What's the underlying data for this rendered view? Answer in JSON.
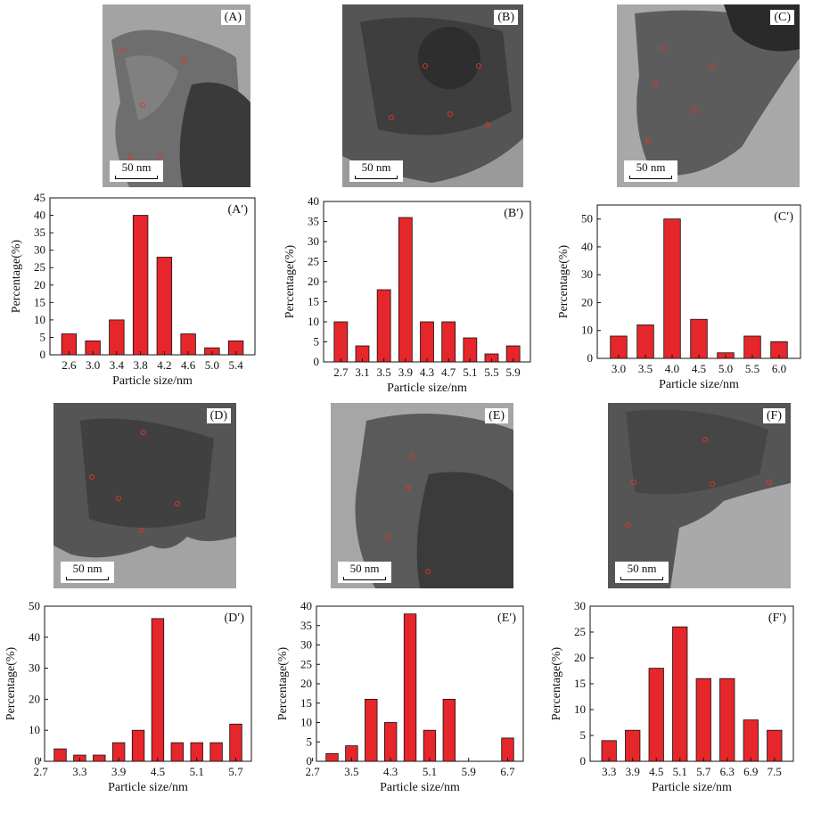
{
  "tem_panels": [
    {
      "label": "(A)",
      "scale": "50 nm"
    },
    {
      "label": "(B)",
      "scale": "50 nm"
    },
    {
      "label": "(C)",
      "scale": "50 nm"
    },
    {
      "label": "(D)",
      "scale": "50 nm"
    },
    {
      "label": "(E)",
      "scale": "50 nm"
    },
    {
      "label": "(F)",
      "scale": "50 nm"
    }
  ],
  "colors": {
    "bar": "#e5262b",
    "bar_edge": "#111111"
  },
  "chart_data": [
    {
      "type": "bar",
      "panel": "(A′)",
      "xlabel": "Particle size/nm",
      "ylabel": "Percentage(%)",
      "categories": [
        "2.6",
        "3.0",
        "3.4",
        "3.8",
        "4.2",
        "4.6",
        "5.0",
        "5.4"
      ],
      "values": [
        6,
        4,
        10,
        40,
        28,
        6,
        2,
        4
      ],
      "ylim": [
        0,
        45
      ],
      "yticks": [
        0,
        5,
        10,
        15,
        20,
        25,
        30,
        35,
        40,
        45
      ]
    },
    {
      "type": "bar",
      "panel": "(B′)",
      "xlabel": "Particle size/nm",
      "ylabel": "Percentage(%)",
      "categories": [
        "2.7",
        "3.1",
        "3.5",
        "3.9",
        "4.3",
        "4.7",
        "5.1",
        "5.5",
        "5.9"
      ],
      "values": [
        10,
        4,
        18,
        36,
        10,
        10,
        6,
        2,
        4
      ],
      "ylim": [
        0,
        40
      ],
      "yticks": [
        0,
        5,
        10,
        15,
        20,
        25,
        30,
        35,
        40
      ]
    },
    {
      "type": "bar",
      "panel": "(C′)",
      "xlabel": "Particle size/nm",
      "ylabel": "Percentage(%)",
      "categories": [
        "3.0",
        "3.5",
        "4.0",
        "4.5",
        "5.0",
        "5.5",
        "6.0"
      ],
      "values": [
        8,
        12,
        50,
        14,
        2,
        8,
        6
      ],
      "ylim": [
        0,
        55
      ],
      "yticks": [
        0,
        10,
        20,
        30,
        40,
        50
      ]
    },
    {
      "type": "bar",
      "panel": "(D′)",
      "xlabel": "Particle size/nm",
      "ylabel": "Percentage(%)",
      "categories": [
        "3.0",
        "3.3",
        "3.6",
        "3.9",
        "4.2",
        "4.5",
        "4.8",
        "5.1",
        "5.4",
        "5.7"
      ],
      "values": [
        4,
        2,
        2,
        6,
        10,
        46,
        6,
        6,
        6,
        12
      ],
      "xticks": [
        "2.7",
        "3.3",
        "3.9",
        "4.5",
        "5.1",
        "5.7"
      ],
      "ylim": [
        0,
        50
      ],
      "yticks": [
        0,
        10,
        20,
        30,
        40,
        50
      ]
    },
    {
      "type": "bar",
      "panel": "(E′)",
      "xlabel": "Particle size/nm",
      "ylabel": "Percentage(%)",
      "categories": [
        "3.1",
        "3.5",
        "3.9",
        "4.3",
        "4.7",
        "5.1",
        "5.5",
        "5.9",
        "6.3",
        "6.7"
      ],
      "values": [
        2,
        4,
        16,
        10,
        38,
        8,
        16,
        0,
        0,
        6
      ],
      "xticks": [
        "2.7",
        "3.5",
        "4.3",
        "5.1",
        "5.9",
        "6.7"
      ],
      "ylim": [
        0,
        40
      ],
      "yticks": [
        0,
        5,
        10,
        15,
        20,
        25,
        30,
        35,
        40
      ]
    },
    {
      "type": "bar",
      "panel": "(F′)",
      "xlabel": "Particle size/nm",
      "ylabel": "Percentage(%)",
      "categories": [
        "3.3",
        "3.9",
        "4.5",
        "5.1",
        "5.7",
        "6.3",
        "6.9",
        "7.5"
      ],
      "values": [
        4,
        6,
        18,
        26,
        16,
        16,
        8,
        6
      ],
      "ylim": [
        0,
        30
      ],
      "yticks": [
        0,
        5,
        10,
        15,
        20,
        25,
        30
      ]
    }
  ]
}
